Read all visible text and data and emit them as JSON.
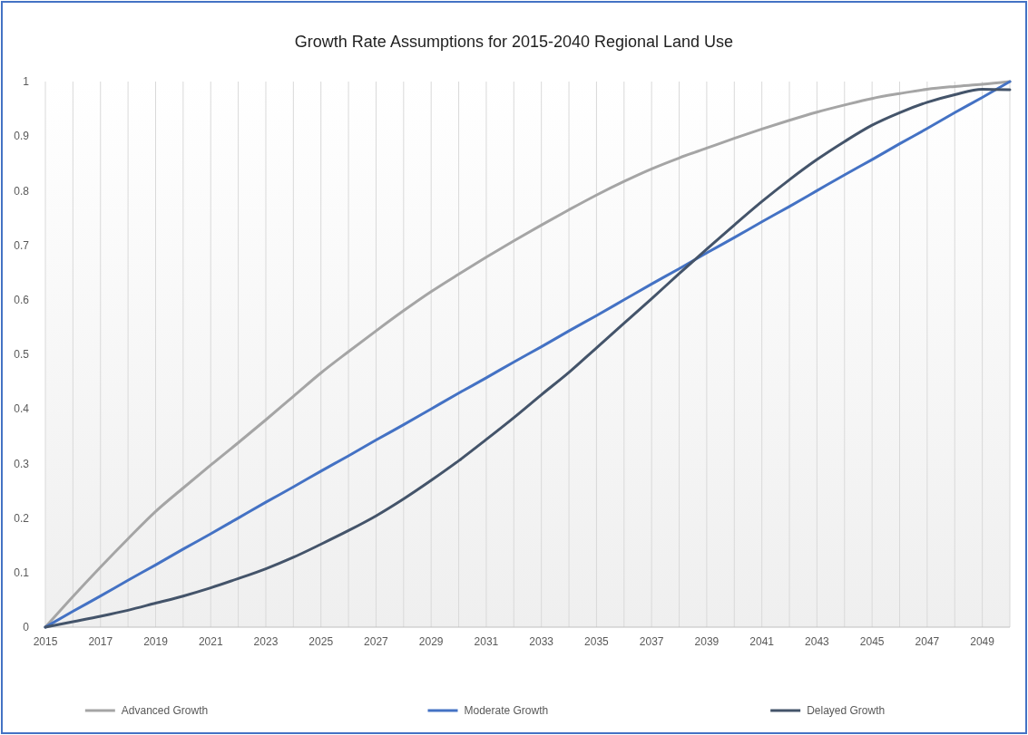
{
  "chart_data": {
    "type": "line",
    "title": "Growth Rate Assumptions for 2015-2040 Regional Land Use",
    "x": [
      2015,
      2016,
      2017,
      2018,
      2019,
      2020,
      2021,
      2022,
      2023,
      2024,
      2025,
      2026,
      2027,
      2028,
      2029,
      2030,
      2031,
      2032,
      2033,
      2034,
      2035,
      2036,
      2037,
      2038,
      2039,
      2040,
      2041,
      2042,
      2043,
      2044,
      2045,
      2046,
      2047,
      2048,
      2049,
      2050
    ],
    "series": [
      {
        "name": "Advanced Growth",
        "color": "#a5a5a5",
        "values": [
          0,
          0.056,
          0.11,
          0.162,
          0.212,
          0.255,
          0.297,
          0.338,
          0.38,
          0.423,
          0.466,
          0.505,
          0.543,
          0.58,
          0.615,
          0.647,
          0.678,
          0.708,
          0.737,
          0.765,
          0.792,
          0.817,
          0.84,
          0.86,
          0.878,
          0.896,
          0.913,
          0.929,
          0.944,
          0.957,
          0.969,
          0.978,
          0.986,
          0.991,
          0.995,
          1
        ]
      },
      {
        "name": "Moderate Growth",
        "color": "#4472c4",
        "values": [
          0,
          0.029,
          0.057,
          0.086,
          0.114,
          0.143,
          0.171,
          0.2,
          0.229,
          0.257,
          0.286,
          0.314,
          0.343,
          0.371,
          0.4,
          0.429,
          0.457,
          0.486,
          0.514,
          0.543,
          0.571,
          0.6,
          0.629,
          0.657,
          0.686,
          0.714,
          0.743,
          0.771,
          0.8,
          0.829,
          0.857,
          0.886,
          0.914,
          0.943,
          0.971,
          1
        ]
      },
      {
        "name": "Delayed Growth",
        "color": "#44546a",
        "values": [
          0,
          0.01,
          0.02,
          0.031,
          0.044,
          0.057,
          0.072,
          0.089,
          0.107,
          0.128,
          0.152,
          0.177,
          0.204,
          0.235,
          0.269,
          0.305,
          0.344,
          0.384,
          0.426,
          0.467,
          0.512,
          0.557,
          0.602,
          0.648,
          0.693,
          0.737,
          0.78,
          0.82,
          0.857,
          0.89,
          0.92,
          0.943,
          0.962,
          0.976,
          0.986,
          0.985
        ]
      }
    ],
    "xlim": [
      2015,
      2050
    ],
    "xticks": [
      2015,
      {
        "value": 2016,
        "label": null
      },
      2017,
      {
        "value": 2018,
        "label": null
      },
      2019,
      {
        "value": 2020,
        "label": null
      },
      2021,
      {
        "value": 2022,
        "label": null
      },
      2023,
      {
        "value": 2024,
        "label": null
      },
      2025,
      {
        "value": 2026,
        "label": null
      },
      2027,
      {
        "value": 2028,
        "label": null
      },
      2029,
      {
        "value": 2030,
        "label": null
      },
      2031,
      {
        "value": 2032,
        "label": null
      },
      2033,
      {
        "value": 2034,
        "label": null
      },
      2035,
      {
        "value": 2036,
        "label": null
      },
      2037,
      {
        "value": 2038,
        "label": null
      },
      2039,
      {
        "value": 2040,
        "label": null
      },
      2041,
      {
        "value": 2042,
        "label": null
      },
      2043,
      {
        "value": 2044,
        "label": null
      },
      2045,
      {
        "value": 2046,
        "label": null
      },
      2047,
      {
        "value": 2048,
        "label": null
      },
      2049,
      {
        "value": 2050,
        "label": null
      }
    ],
    "ylim": [
      0,
      1
    ],
    "yticks": [
      0,
      0.1,
      0.2,
      0.3,
      0.4,
      0.5,
      0.6,
      0.7,
      0.8,
      0.9,
      1
    ],
    "grid": "x",
    "legend": "bottom",
    "marker": "none",
    "line_style": "solid"
  }
}
